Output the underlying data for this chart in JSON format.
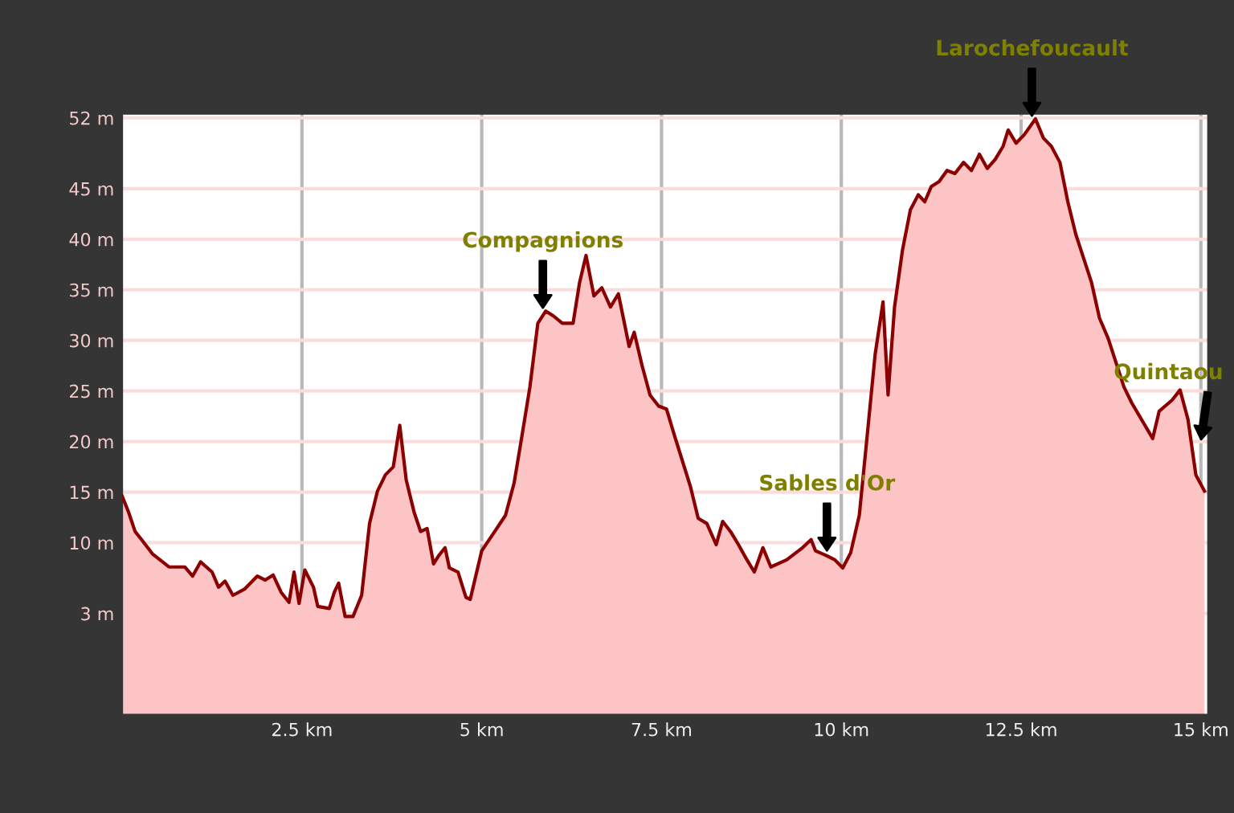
{
  "chart_data": {
    "type": "area",
    "xlim": [
      0,
      15.1
    ],
    "ylim": [
      -7,
      52.4
    ],
    "xticks": [
      {
        "value": 2.5,
        "label": "2.5 km"
      },
      {
        "value": 5,
        "label": "5 km"
      },
      {
        "value": 7.5,
        "label": "7.5 km"
      },
      {
        "value": 10,
        "label": "10 km"
      },
      {
        "value": 12.5,
        "label": "12.5 km"
      },
      {
        "value": 15,
        "label": "15 km"
      }
    ],
    "yticks": [
      {
        "value": 3,
        "label": "3 m"
      },
      {
        "value": 10,
        "label": "10 m"
      },
      {
        "value": 15,
        "label": "15 m"
      },
      {
        "value": 20,
        "label": "20 m"
      },
      {
        "value": 25,
        "label": "25 m"
      },
      {
        "value": 30,
        "label": "30 m"
      },
      {
        "value": 35,
        "label": "35 m"
      },
      {
        "value": 40,
        "label": "40 m"
      },
      {
        "value": 45,
        "label": "45 m"
      },
      {
        "value": 52,
        "label": "52 m"
      }
    ],
    "grid": true,
    "x": [
      0,
      0.09,
      0.18,
      0.27,
      0.42,
      0.65,
      0.87,
      0.98,
      1.09,
      1.25,
      1.34,
      1.43,
      1.54,
      1.7,
      1.88,
      1.99,
      2.1,
      2.21,
      2.32,
      2.39,
      2.46,
      2.54,
      2.66,
      2.72,
      2.88,
      2.95,
      3.01,
      3.1,
      3.21,
      3.33,
      3.44,
      3.55,
      3.66,
      3.77,
      3.86,
      3.95,
      4.06,
      4.15,
      4.24,
      4.33,
      4.4,
      4.49,
      4.55,
      4.67,
      4.78,
      4.84,
      4.93,
      5.0,
      5.18,
      5.33,
      5.45,
      5.56,
      5.67,
      5.78,
      5.89,
      6.0,
      6.12,
      6.27,
      6.36,
      6.45,
      6.56,
      6.67,
      6.79,
      6.9,
      7.05,
      7.12,
      7.23,
      7.34,
      7.46,
      7.57,
      7.68,
      7.9,
      8.01,
      8.13,
      8.26,
      8.35,
      8.46,
      8.57,
      8.68,
      8.79,
      8.91,
      9.02,
      9.24,
      9.46,
      9.58,
      9.64,
      9.8,
      9.91,
      10.02,
      10.13,
      10.25,
      10.36,
      10.47,
      10.58,
      10.65,
      10.74,
      10.85,
      10.96,
      11.07,
      11.16,
      11.25,
      11.36,
      11.47,
      11.58,
      11.7,
      11.81,
      11.92,
      12.03,
      12.14,
      12.25,
      12.32,
      12.43,
      12.54,
      12.7,
      12.81,
      12.92,
      13.04,
      13.15,
      13.26,
      13.37,
      13.48,
      13.59,
      13.71,
      13.82,
      13.93,
      14.04,
      14.33,
      14.42,
      14.6,
      14.71,
      14.82,
      14.93,
      15.05
    ],
    "series": [
      {
        "color": "#8b0000",
        "values": [
          14.6,
          13.0,
          11.1,
          10.3,
          8.9,
          7.6,
          7.6,
          6.7,
          8.1,
          7.1,
          5.6,
          6.2,
          4.8,
          5.4,
          6.7,
          6.3,
          6.8,
          5.1,
          4.1,
          7.1,
          4.0,
          7.3,
          5.6,
          3.7,
          3.5,
          5.1,
          6.0,
          2.7,
          2.7,
          4.8,
          11.9,
          15.1,
          16.7,
          17.5,
          21.6,
          16.2,
          13.0,
          11.1,
          11.4,
          7.9,
          8.7,
          9.5,
          7.5,
          7.1,
          4.6,
          4.4,
          7.1,
          9.2,
          11.1,
          12.7,
          15.9,
          20.6,
          25.4,
          31.7,
          32.9,
          32.4,
          31.7,
          31.7,
          35.7,
          38.4,
          34.4,
          35.2,
          33.3,
          34.6,
          29.4,
          30.8,
          27.5,
          24.6,
          23.5,
          23.2,
          20.6,
          15.6,
          12.4,
          11.9,
          9.8,
          12.1,
          11.1,
          9.8,
          8.4,
          7.1,
          9.5,
          7.6,
          8.3,
          9.5,
          10.3,
          9.2,
          8.7,
          8.3,
          7.5,
          9.0,
          12.7,
          20.6,
          28.6,
          33.8,
          24.6,
          33.3,
          38.9,
          42.9,
          44.4,
          43.7,
          45.2,
          45.7,
          46.8,
          46.5,
          47.6,
          46.8,
          48.4,
          47.0,
          47.9,
          49.2,
          50.8,
          49.5,
          50.3,
          51.9,
          50.0,
          49.2,
          47.6,
          43.7,
          40.5,
          38.1,
          35.7,
          32.2,
          30.2,
          27.8,
          25.4,
          23.8,
          20.3,
          23.0,
          24.1,
          25.1,
          22.2,
          16.7,
          15.1
        ]
      }
    ],
    "annotations": [
      {
        "text": "Compagnions",
        "x": 5.85,
        "y": 33
      },
      {
        "text": "Sables d'Or",
        "x": 9.8,
        "y": 9
      },
      {
        "text": "Larochefoucault",
        "x": 12.65,
        "y": 52
      },
      {
        "text": "Quintaou",
        "x": 15.0,
        "y": 20
      }
    ]
  }
}
